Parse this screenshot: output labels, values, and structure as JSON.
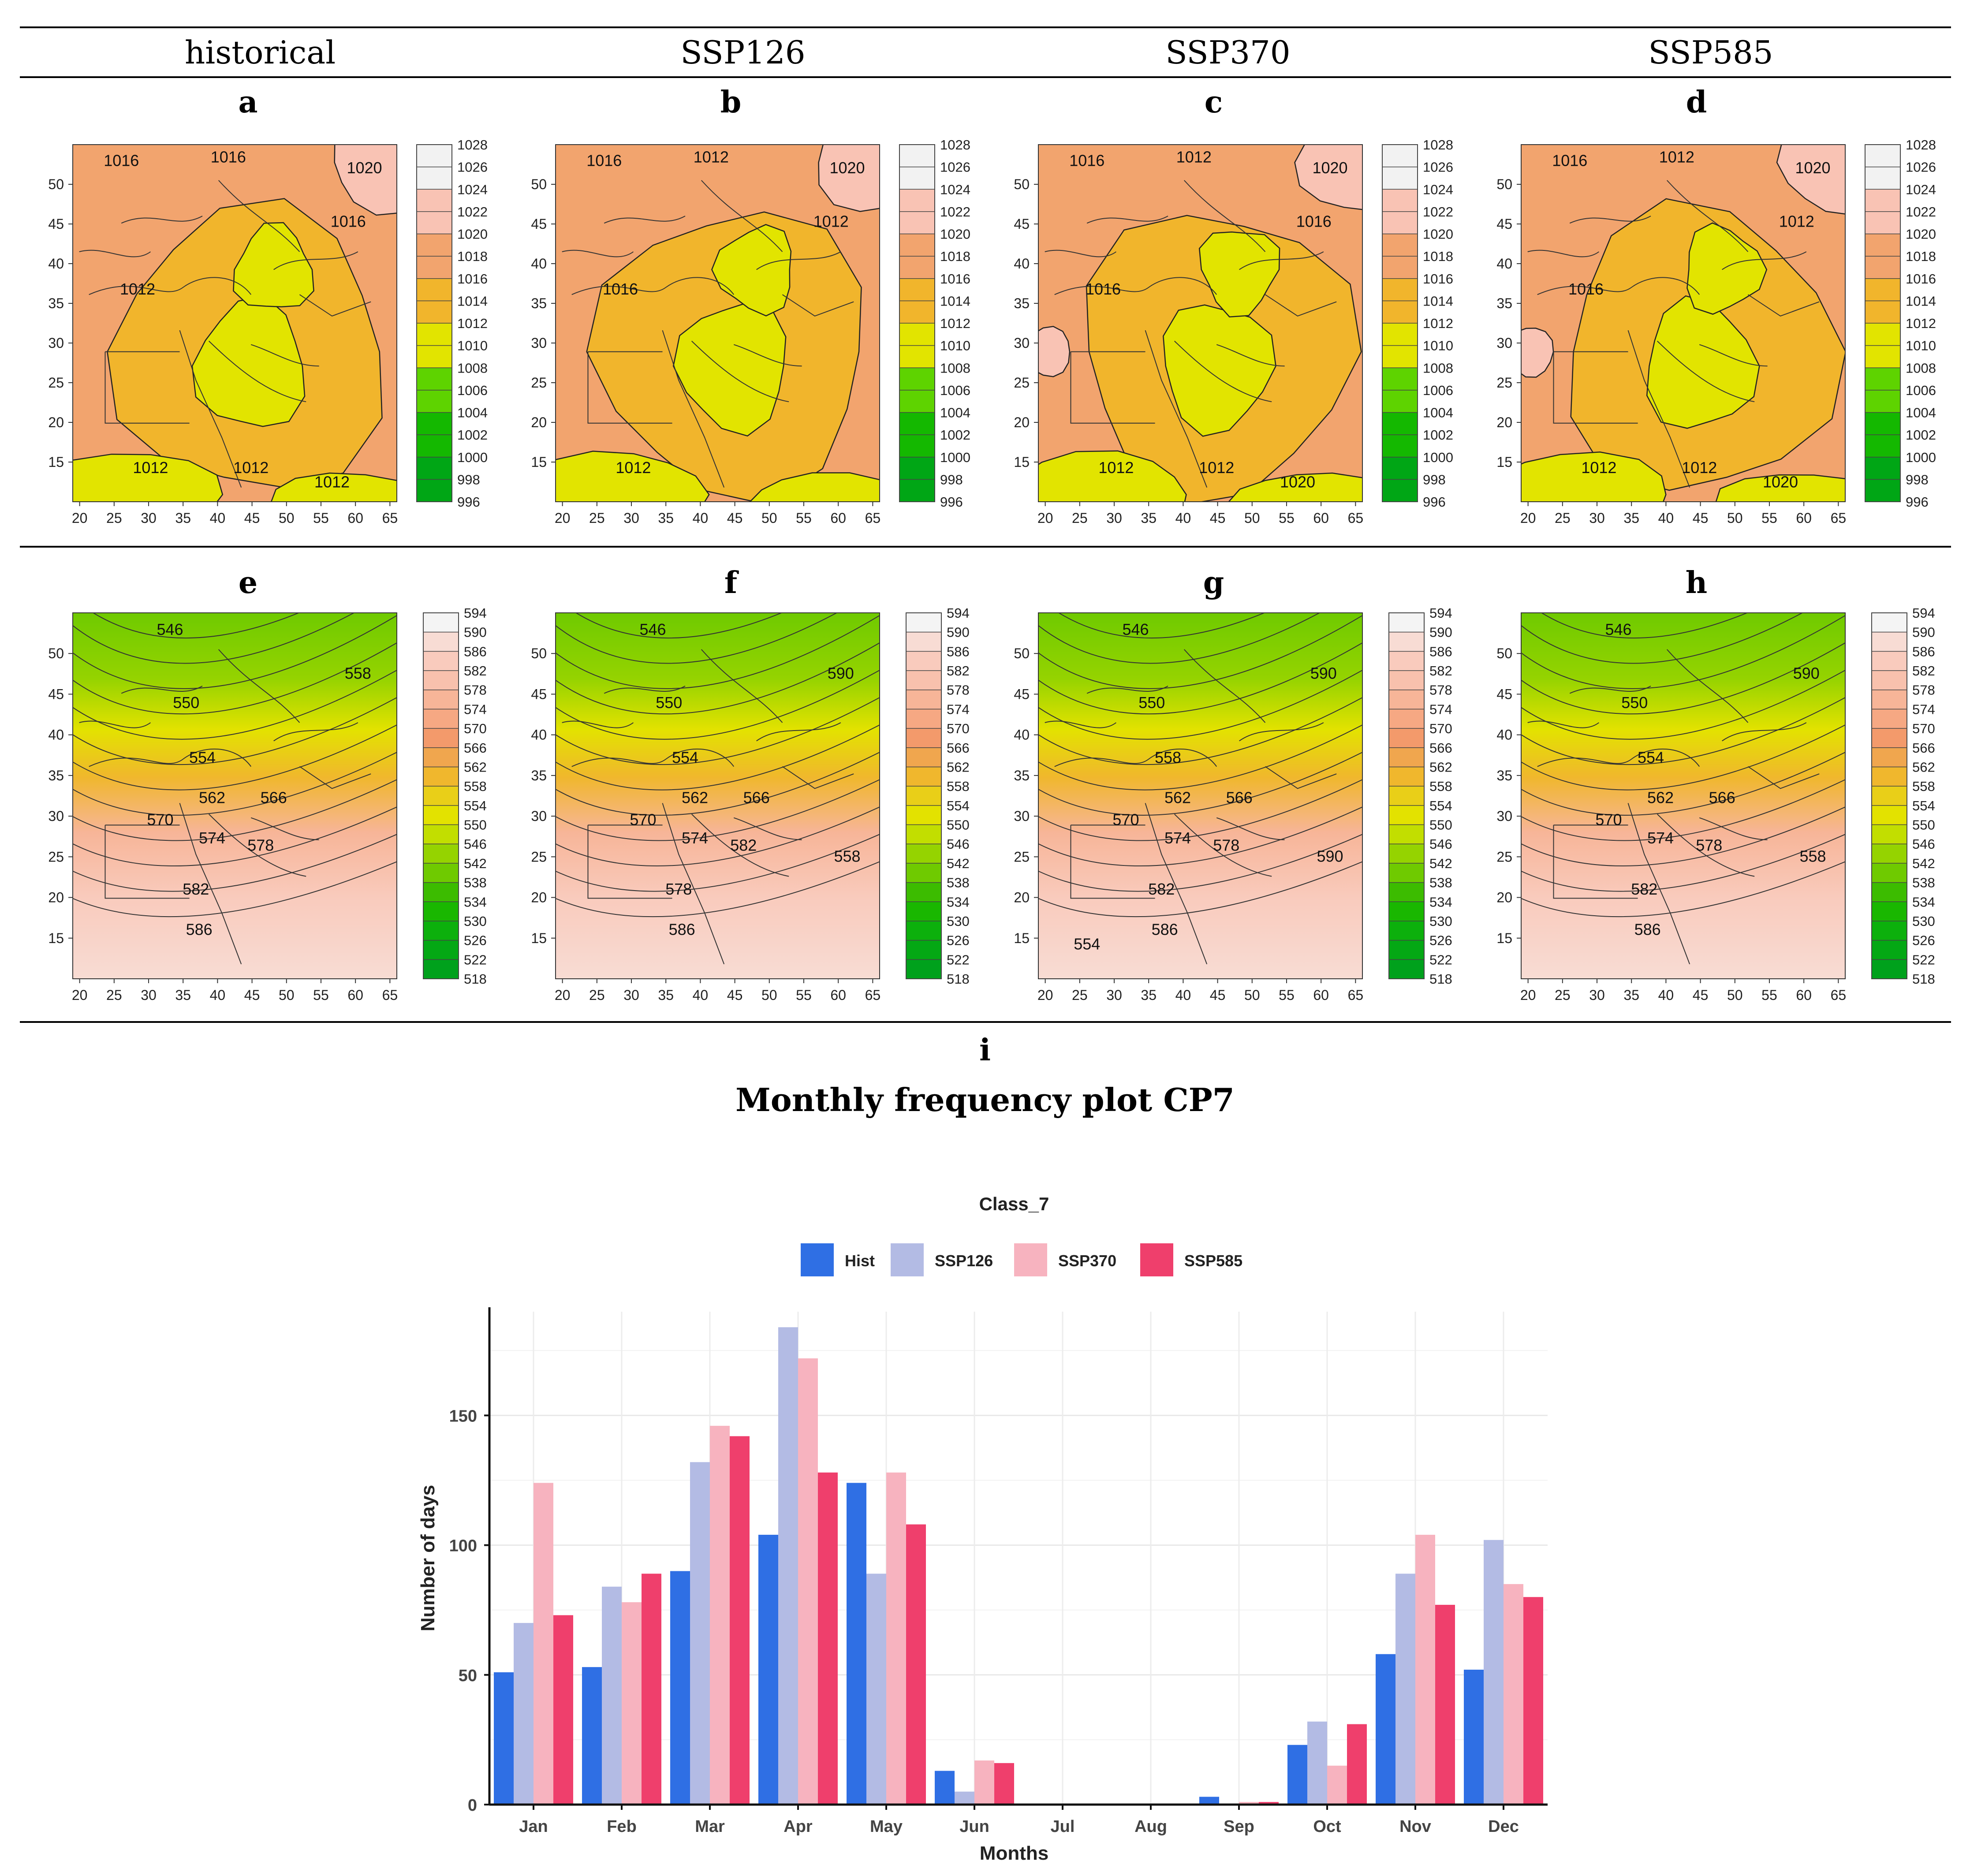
{
  "header": {
    "columns": [
      "historical",
      "SSP126",
      "SSP370",
      "SSP585"
    ]
  },
  "panels": {
    "slp": [
      {
        "letter": "a",
        "scenario": "historical",
        "contour_labels": [
          "1016",
          "1012",
          "1020",
          "1016",
          "1016",
          "1012",
          "1012",
          "1012"
        ],
        "feature": ""
      },
      {
        "letter": "b",
        "scenario": "SSP126",
        "contour_labels": [
          "1016",
          "1016",
          "1020",
          "1012",
          "1012",
          "1012"
        ],
        "feature": ""
      },
      {
        "letter": "c",
        "scenario": "SSP370",
        "contour_labels": [
          "1016",
          "1016",
          "1020",
          "1016",
          "1012",
          "1012",
          "1012",
          "1020"
        ],
        "feature": "1020-cell"
      },
      {
        "letter": "d",
        "scenario": "SSP585",
        "contour_labels": [
          "1016",
          "1016",
          "1020",
          "1012",
          "1012",
          "1012",
          "1012",
          "1020"
        ],
        "feature": "1020-cell"
      }
    ],
    "gph": [
      {
        "letter": "e",
        "scenario": "historical",
        "contour_labels": [
          "546",
          "550",
          "554",
          "562",
          "566",
          "570",
          "574",
          "578",
          "582",
          "586",
          "558"
        ]
      },
      {
        "letter": "f",
        "scenario": "SSP126",
        "contour_labels": [
          "546",
          "550",
          "554",
          "562",
          "566",
          "570",
          "574",
          "582",
          "578",
          "586",
          "590",
          "558"
        ]
      },
      {
        "letter": "g",
        "scenario": "SSP370",
        "contour_labels": [
          "546",
          "550",
          "558",
          "562",
          "566",
          "570",
          "574",
          "578",
          "582",
          "586",
          "590",
          "590",
          "554"
        ]
      },
      {
        "letter": "h",
        "scenario": "SSP585",
        "contour_labels": [
          "546",
          "550",
          "554",
          "562",
          "566",
          "570",
          "574",
          "578",
          "582",
          "586",
          "590",
          "558"
        ]
      }
    ]
  },
  "map_axes": {
    "x_ticks": [
      "20",
      "25",
      "30",
      "35",
      "40",
      "45",
      "50",
      "55",
      "60",
      "65"
    ],
    "y_ticks": [
      "50",
      "45",
      "40",
      "35",
      "30",
      "25",
      "20",
      "15"
    ],
    "x_range": [
      19,
      66
    ],
    "y_range": [
      10,
      55
    ]
  },
  "legends": {
    "slp": {
      "levels": [
        "1028",
        "1026",
        "1024",
        "1022",
        "1020",
        "1018",
        "1016",
        "1014",
        "1012",
        "1010",
        "1008",
        "1006",
        "1004",
        "1002",
        "1000",
        "998",
        "996"
      ],
      "colors": [
        "#f2f2f2",
        "#f9c3b4",
        "#f2a46e",
        "#f1b52c",
        "#e2e400",
        "#5ed300",
        "#14b800",
        "#00a615"
      ]
    },
    "gph": {
      "levels": [
        "594",
        "590",
        "586",
        "582",
        "578",
        "574",
        "570",
        "566",
        "562",
        "558",
        "554",
        "550",
        "546",
        "542",
        "538",
        "534",
        "530",
        "526",
        "522",
        "518"
      ],
      "colors": [
        "#f4f4f4",
        "#f8dcd4",
        "#f9cbbd",
        "#f8c1ad",
        "#f7b598",
        "#f6a883",
        "#f39a6b",
        "#f0a64e",
        "#f0b72d",
        "#e9cf18",
        "#e3e200",
        "#c2de00",
        "#95d300",
        "#6fca00",
        "#3cbc00",
        "#19b700",
        "#0cb00c",
        "#04a814",
        "#00a11c",
        "#009a22"
      ]
    }
  },
  "section_i": {
    "letter": "i",
    "title": "Monthly frequency plot CP7"
  },
  "chart_data": {
    "type": "bar",
    "title": "Class_7",
    "xlabel": "Months",
    "ylabel": "Number of days",
    "ylim": [
      0,
      190
    ],
    "y_ticks": [
      0,
      50,
      100,
      150
    ],
    "categories": [
      "Jan",
      "Feb",
      "Mar",
      "Apr",
      "May",
      "Jun",
      "Jul",
      "Aug",
      "Sep",
      "Oct",
      "Nov",
      "Dec"
    ],
    "series": [
      {
        "name": "Hist",
        "color": "#2f6fe4",
        "values": [
          51,
          53,
          90,
          104,
          124,
          13,
          0,
          0,
          3,
          23,
          58,
          52
        ]
      },
      {
        "name": "SSP126",
        "color": "#b3bbe4",
        "values": [
          70,
          84,
          132,
          184,
          89,
          5,
          0,
          0,
          0,
          32,
          89,
          102
        ]
      },
      {
        "name": "SSP370",
        "color": "#f7b3bf",
        "values": [
          124,
          78,
          146,
          172,
          128,
          17,
          0,
          0,
          1,
          15,
          104,
          85
        ]
      },
      {
        "name": "SSP585",
        "color": "#ef3f6c",
        "values": [
          73,
          89,
          142,
          128,
          108,
          16,
          0,
          0,
          1,
          31,
          77,
          80
        ]
      }
    ],
    "legend_position": "top"
  }
}
